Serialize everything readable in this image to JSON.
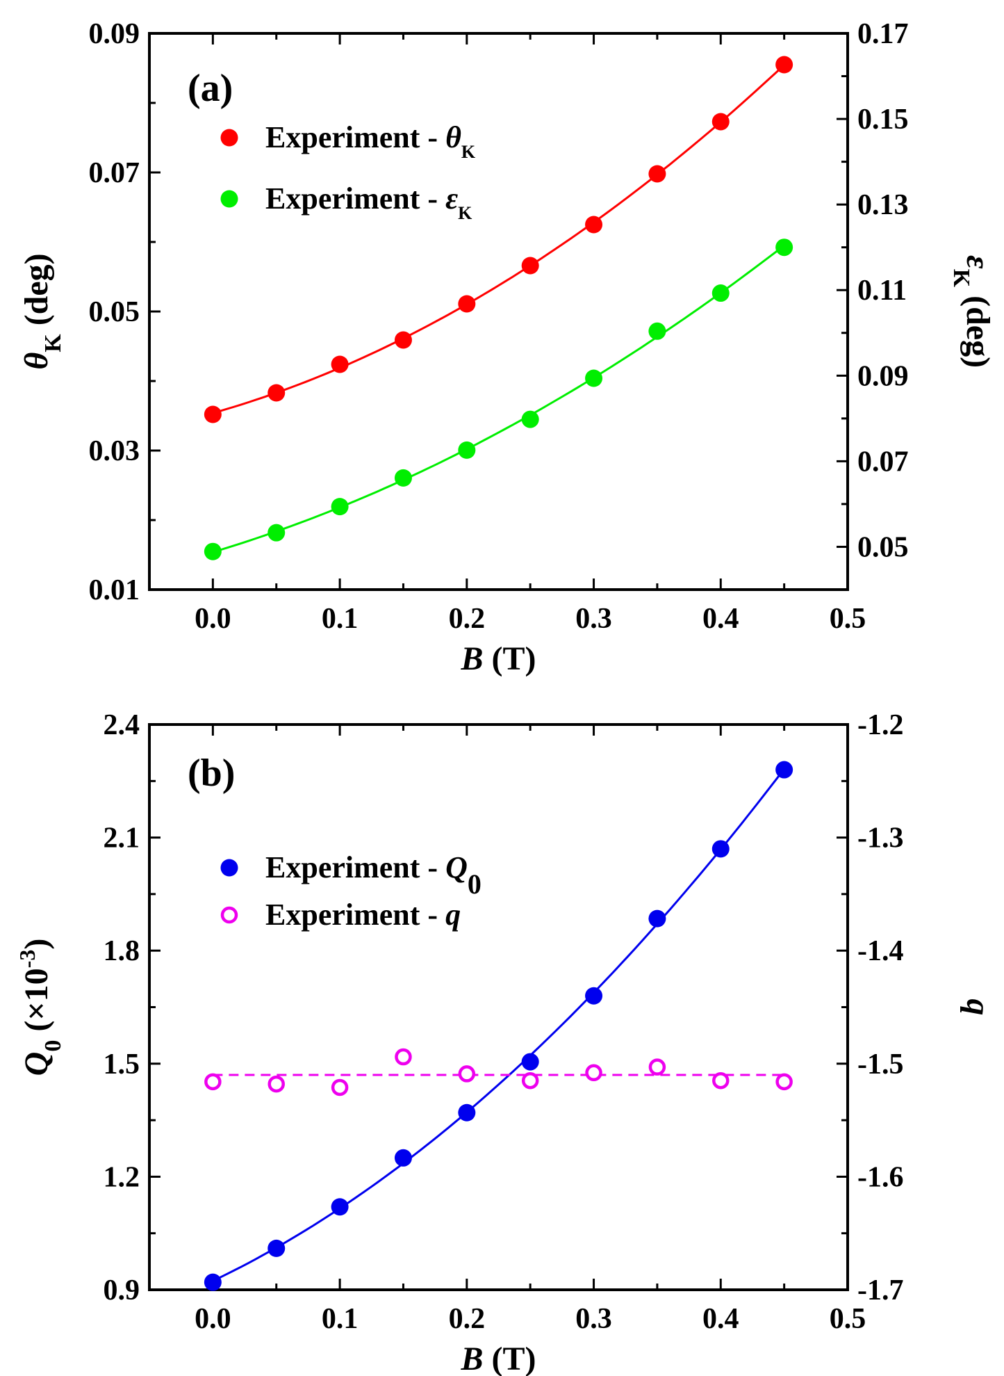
{
  "chart_data": [
    {
      "type": "scatter",
      "panel_label": "(a)",
      "xlabel": {
        "var": "B",
        "unit": " (T)"
      },
      "ylabel_left": {
        "var": "θ",
        "sub": "K",
        "unit": " (deg)"
      },
      "ylabel_right": {
        "var": "ε",
        "sub": "K",
        "unit": " (deg)"
      },
      "xlim": [
        -0.05,
        0.5
      ],
      "ylim_left": [
        0.01,
        0.09
      ],
      "ylim_right": [
        0.04,
        0.17
      ],
      "xticks": [
        0.0,
        0.1,
        0.2,
        0.3,
        0.4,
        0.5
      ],
      "xtick_labels": [
        "0.0",
        "0.1",
        "0.2",
        "0.3",
        "0.4",
        "0.5"
      ],
      "yticks_left": [
        0.01,
        0.03,
        0.05,
        0.07,
        0.09
      ],
      "ytick_labels_left": [
        "0.01",
        "0.03",
        "0.05",
        "0.07",
        "0.09"
      ],
      "yticks_right": [
        0.05,
        0.07,
        0.09,
        0.11,
        0.13,
        0.15,
        0.17
      ],
      "ytick_labels_right": [
        "0.05",
        "0.07",
        "0.09",
        "0.11",
        "0.13",
        "0.15",
        "0.17"
      ],
      "legend_position": "top-left",
      "series": [
        {
          "name": "Experiment - θK",
          "legend_prefix": "Experiment - ",
          "legend_var": "θ",
          "legend_sub": "K",
          "axis": "left",
          "color": "#ff0000",
          "marker": "filled-circle",
          "fit": "solid",
          "x": [
            0.0,
            0.05,
            0.1,
            0.15,
            0.2,
            0.25,
            0.3,
            0.35,
            0.4,
            0.45
          ],
          "y": [
            0.0352,
            0.0383,
            0.0424,
            0.0459,
            0.0511,
            0.0566,
            0.0625,
            0.0698,
            0.0773,
            0.0855
          ]
        },
        {
          "name": "Experiment - εK",
          "legend_prefix": "Experiment - ",
          "legend_var": "ε",
          "legend_sub": "K",
          "axis": "right",
          "color": "#00ee00",
          "marker": "filled-circle",
          "fit": "solid",
          "x": [
            0.0,
            0.05,
            0.1,
            0.15,
            0.2,
            0.25,
            0.3,
            0.35,
            0.4,
            0.45
          ],
          "y": [
            0.0489,
            0.0533,
            0.0594,
            0.0661,
            0.0726,
            0.0798,
            0.0894,
            0.1004,
            0.1093,
            0.12
          ]
        }
      ]
    },
    {
      "type": "scatter",
      "panel_label": "(b)",
      "xlabel": {
        "var": "B",
        "unit": " (T)"
      },
      "ylabel_left": {
        "var": "Q",
        "sub": "0",
        "unit": " (×10",
        "sup": "-3",
        "close": ")"
      },
      "ylabel_right": {
        "var": "q"
      },
      "xlim": [
        -0.05,
        0.5
      ],
      "ylim_left": [
        0.9,
        2.4
      ],
      "ylim_right": [
        -1.7,
        -1.2
      ],
      "xticks": [
        0.0,
        0.1,
        0.2,
        0.3,
        0.4,
        0.5
      ],
      "xtick_labels": [
        "0.0",
        "0.1",
        "0.2",
        "0.3",
        "0.4",
        "0.5"
      ],
      "yticks_left": [
        0.9,
        1.2,
        1.5,
        1.8,
        2.1,
        2.4
      ],
      "ytick_labels_left": [
        "0.9",
        "1.2",
        "1.5",
        "1.8",
        "2.1",
        "2.4"
      ],
      "yticks_right": [
        -1.7,
        -1.6,
        -1.5,
        -1.4,
        -1.3,
        -1.2
      ],
      "ytick_labels_right": [
        "-1.7",
        "-1.6",
        "-1.5",
        "-1.4",
        "-1.3",
        "-1.2"
      ],
      "legend_position": "top-left",
      "series": [
        {
          "name": "Experiment - Q0",
          "legend_prefix": "Experiment - ",
          "legend_var": "Q",
          "legend_sub": "0",
          "axis": "left",
          "color": "#0000ee",
          "marker": "filled-circle",
          "fit": "solid",
          "x": [
            0.0,
            0.05,
            0.1,
            0.15,
            0.2,
            0.25,
            0.3,
            0.35,
            0.4,
            0.45
          ],
          "y": [
            0.92,
            1.01,
            1.12,
            1.25,
            1.37,
            1.505,
            1.68,
            1.885,
            2.07,
            2.28
          ]
        },
        {
          "name": "Experiment - q",
          "legend_prefix": "Experiment - ",
          "legend_var": "q",
          "legend_sub": "",
          "axis": "right",
          "color": "#ee00ee",
          "marker": "open-circle",
          "fit": "dashed",
          "fit_value": -1.51,
          "x": [
            0.0,
            0.05,
            0.1,
            0.15,
            0.2,
            0.25,
            0.3,
            0.35,
            0.4,
            0.45
          ],
          "y": [
            -1.516,
            -1.518,
            -1.521,
            -1.494,
            -1.509,
            -1.515,
            -1.508,
            -1.503,
            -1.515,
            -1.516
          ]
        }
      ]
    }
  ]
}
